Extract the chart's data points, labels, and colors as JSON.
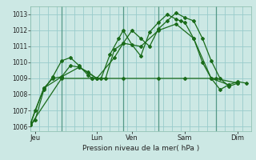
{
  "title": "",
  "xlabel": "Pression niveau de la mer( hPa )",
  "bg_color": "#cce8e4",
  "grid_color": "#99cccc",
  "line_color": "#1a6b1a",
  "ylim": [
    1005.7,
    1013.5
  ],
  "yticks": [
    1006,
    1007,
    1008,
    1009,
    1010,
    1011,
    1012,
    1013
  ],
  "x_tick_labels": [
    "Jeu",
    "Lun",
    "Ven",
    "Sam",
    "Dim"
  ],
  "x_tick_positions": [
    0.5,
    7.5,
    11.5,
    17.5,
    23.5
  ],
  "vline_positions": [
    3.5,
    10.5,
    14.5,
    21.0
  ],
  "xlim": [
    0,
    25
  ],
  "series": [
    {
      "x": [
        0,
        0.5,
        1.5,
        2.5,
        3.5,
        4.5,
        5.5,
        6.5,
        7.0,
        8.0,
        9.0,
        10.0,
        10.5,
        11.5,
        12.5,
        13.5,
        14.5,
        15.5,
        16.5,
        17.0,
        17.5,
        18.5,
        19.5,
        20.5,
        21.5,
        22.5,
        23.5,
        24.5
      ],
      "y": [
        1006.1,
        1006.4,
        1008.3,
        1009.1,
        1010.1,
        1010.3,
        1009.8,
        1009.2,
        1009.0,
        1009.0,
        1010.5,
        1011.5,
        1012.0,
        1011.1,
        1010.4,
        1011.9,
        1012.5,
        1013.0,
        1012.7,
        1012.6,
        1012.5,
        1011.5,
        1010.0,
        1009.0,
        1008.3,
        1008.6,
        1008.8,
        1008.7
      ]
    },
    {
      "x": [
        0,
        0.5,
        1.5,
        2.5,
        3.5,
        4.5,
        5.5,
        6.5,
        7.5,
        8.5,
        9.5,
        10.5,
        11.5,
        12.5,
        13.5,
        14.5,
        15.5,
        16.5,
        17.5,
        18.5,
        19.5,
        20.5,
        21.5,
        22.5,
        23.5
      ],
      "y": [
        1006.2,
        1007.0,
        1008.4,
        1009.0,
        1009.1,
        1009.8,
        1009.7,
        1009.4,
        1009.0,
        1009.0,
        1010.8,
        1011.2,
        1012.0,
        1011.5,
        1011.0,
        1012.1,
        1012.6,
        1013.1,
        1012.8,
        1012.6,
        1011.5,
        1010.1,
        1009.0,
        1008.5,
        1008.7
      ]
    },
    {
      "x": [
        0,
        3.5,
        7.0,
        10.5,
        14.5,
        17.5,
        21.0,
        23.5
      ],
      "y": [
        1006.1,
        1009.0,
        1009.0,
        1009.0,
        1009.0,
        1009.0,
        1009.0,
        1008.7
      ]
    },
    {
      "x": [
        0,
        1.5,
        3.5,
        5.5,
        7.5,
        9.5,
        10.5,
        12.5,
        14.5,
        16.5,
        18.5,
        20.5,
        22.5
      ],
      "y": [
        1006.2,
        1008.4,
        1009.1,
        1009.7,
        1009.0,
        1010.3,
        1011.2,
        1011.0,
        1012.0,
        1012.4,
        1011.5,
        1009.0,
        1008.6
      ]
    }
  ]
}
